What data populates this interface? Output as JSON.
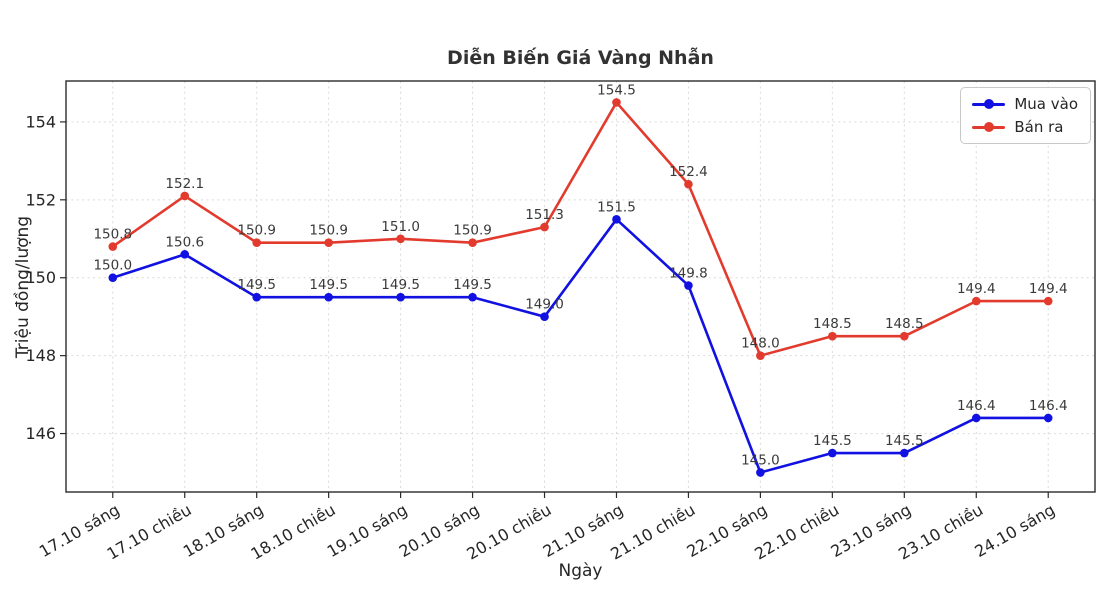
{
  "chart_data": {
    "type": "line",
    "title": "Diễn Biến Giá Vàng Nhẫn",
    "xlabel": "Ngày",
    "ylabel": "Triệu đồng/lượng",
    "categories": [
      "17.10 sáng",
      "17.10 chiều",
      "18.10 sáng",
      "18.10 chiều",
      "19.10 sáng",
      "20.10 sáng",
      "20.10 chiều",
      "21.10 sáng",
      "21.10 chiều",
      "22.10 sáng",
      "22.10 chiều",
      "23.10 sáng",
      "23.10 chiều",
      "24.10 sáng"
    ],
    "series": [
      {
        "name": "Mua vào",
        "color": "#1111e2",
        "values": [
          150.0,
          150.6,
          149.5,
          149.5,
          149.5,
          149.5,
          149.0,
          151.5,
          149.8,
          145.0,
          145.5,
          145.5,
          146.4,
          146.4
        ]
      },
      {
        "name": "Bán ra",
        "color": "#e23b2e",
        "values": [
          150.8,
          152.1,
          150.9,
          150.9,
          151.0,
          150.9,
          151.3,
          154.5,
          152.4,
          148.0,
          148.5,
          148.5,
          149.4,
          149.4
        ]
      }
    ],
    "yticks": [
      146,
      148,
      150,
      152,
      154
    ],
    "ylim": [
      144.5,
      155.05
    ],
    "grid": true,
    "grid_style": "dashed",
    "legend_position": "upper-right",
    "x_tick_rotation": 30,
    "data_label_format": "one-decimal",
    "colors": {
      "grid": "#d9d9d9",
      "spine": "#2a2a2a",
      "tick_label": "#262626",
      "axis_title": "#262626",
      "data_label": "#3a3a3a",
      "title": "#323232",
      "legend_border": "#c9c9c9"
    }
  }
}
